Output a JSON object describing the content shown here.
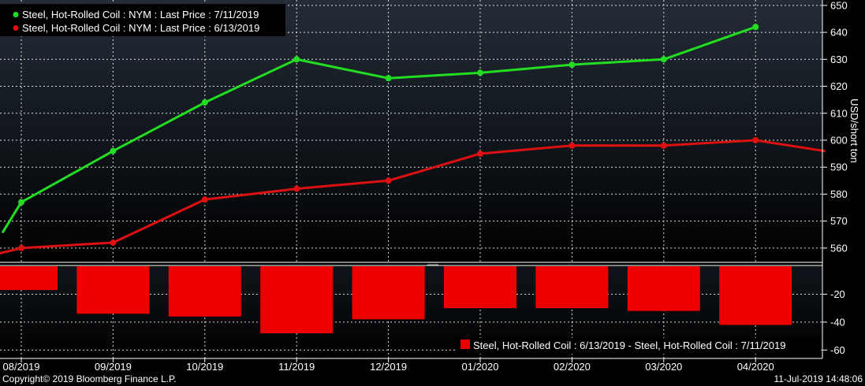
{
  "chart_data": [
    {
      "type": "line",
      "ylabel": "USD/short ton",
      "ylim": [
        555,
        652
      ],
      "yticks": [
        560,
        570,
        580,
        590,
        600,
        610,
        620,
        630,
        640,
        650
      ],
      "grid": true,
      "legend_position": "top-left",
      "series": [
        {
          "name": "Steel, Hot-Rolled Coil : NYM : Last Price : 7/11/2019",
          "color": "#22dd22",
          "points": [
            {
              "x": -0.2,
              "y": 566,
              "marker": false
            },
            {
              "x": 0,
              "y": 577
            },
            {
              "x": 1,
              "y": 596
            },
            {
              "x": 2,
              "y": 614
            },
            {
              "x": 3,
              "y": 630
            },
            {
              "x": 4,
              "y": 623
            },
            {
              "x": 5,
              "y": 625
            },
            {
              "x": 6,
              "y": 628
            },
            {
              "x": 7,
              "y": 630
            },
            {
              "x": 8,
              "y": 642
            }
          ]
        },
        {
          "name": "Steel, Hot-Rolled Coil : NYM : Last Price : 6/13/2019",
          "color": "#dd1111",
          "points": [
            {
              "x": -0.24,
              "y": 558,
              "marker": false
            },
            {
              "x": 0,
              "y": 560
            },
            {
              "x": 1,
              "y": 562
            },
            {
              "x": 2,
              "y": 578
            },
            {
              "x": 3,
              "y": 582
            },
            {
              "x": 4,
              "y": 585
            },
            {
              "x": 5,
              "y": 595
            },
            {
              "x": 6,
              "y": 598
            },
            {
              "x": 7,
              "y": 598
            },
            {
              "x": 8,
              "y": 600
            },
            {
              "x": 8.75,
              "y": 596,
              "marker": false
            }
          ]
        }
      ]
    },
    {
      "type": "bar",
      "categories": [
        "08/2019",
        "09/2019",
        "10/2019",
        "11/2019",
        "12/2019",
        "01/2020",
        "02/2020",
        "03/2020",
        "04/2020"
      ],
      "series": [
        {
          "name": "Steel, Hot-Rolled Coil : 6/13/2019 - Steel, Hot-Rolled Coil : 7/11/2019",
          "color": "#ee0000",
          "values": [
            -17,
            -34,
            -36,
            -48,
            -38,
            -30,
            -30,
            -32,
            -42
          ]
        }
      ],
      "ylim": [
        -66,
        0
      ],
      "yticks": [
        -20,
        -40,
        -60
      ],
      "grid": true,
      "legend_position": "bottom-right"
    }
  ],
  "footer": {
    "copyright": "Copyright© 2019 Bloomberg Finance L.P.",
    "timestamp": "11-Jul-2019 14:48:06"
  }
}
